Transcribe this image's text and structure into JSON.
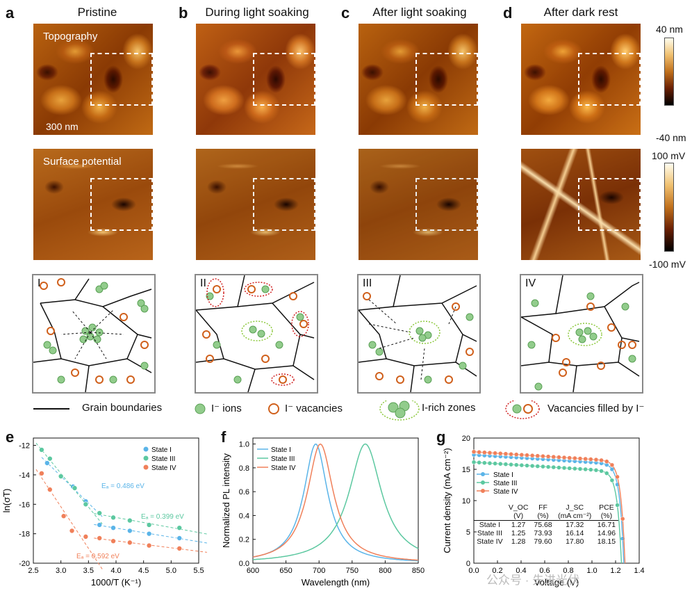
{
  "panels": {
    "a": {
      "letter": "a",
      "title": "Pristine"
    },
    "b": {
      "letter": "b",
      "title": "During light soaking"
    },
    "c": {
      "letter": "c",
      "title": "After light soaking"
    },
    "d": {
      "letter": "d",
      "title": "After dark rest"
    }
  },
  "afm": {
    "topography_label": "Topography",
    "surface_potential_label": "Surface potential",
    "scale_bar": "300 nm",
    "topo_colorbar": {
      "max": "40 nm",
      "min": "-40 nm"
    },
    "sp_colorbar": {
      "max": "100 mV",
      "min": "-100 mV"
    }
  },
  "schematics": {
    "I": "I",
    "II": "II",
    "III": "III",
    "IV": "IV"
  },
  "legend": {
    "grain_boundaries": "Grain boundaries",
    "ions": "I⁻ ions",
    "vacancies": "I⁻ vacancies",
    "rich_zones": "I-rich zones",
    "filled": "Vacancies filled by I⁻"
  },
  "panel_e": {
    "letter": "e"
  },
  "panel_f": {
    "letter": "f"
  },
  "panel_g": {
    "letter": "g"
  },
  "chart_data": [
    {
      "type": "scatter",
      "xlabel": "1000/T (K⁻¹)",
      "ylabel": "ln(σT)",
      "xlim": [
        2.5,
        5.5
      ],
      "ylim": [
        -20,
        -11.5
      ],
      "xticks": [
        "2.5",
        "3.0",
        "3.5",
        "4.0",
        "4.5",
        "5.0",
        "5.5"
      ],
      "yticks": [
        "-20",
        "-18",
        "-16",
        "-14",
        "-12"
      ],
      "legend_position": "top-right",
      "series": [
        {
          "name": "State I",
          "color": "#5ab4e8",
          "x": [
            2.75,
            3.0,
            3.22,
            3.45,
            3.7,
            3.95,
            4.25,
            4.6,
            5.15
          ],
          "y": [
            -13.2,
            -14.1,
            -14.8,
            -15.8,
            -17.4,
            -17.6,
            -17.8,
            -18.0,
            -18.3
          ]
        },
        {
          "name": "State III",
          "color": "#5cc8a0",
          "x": [
            2.65,
            2.8,
            3.0,
            3.25,
            3.45,
            3.7,
            3.95,
            4.25,
            4.6,
            5.15
          ],
          "y": [
            -12.3,
            -12.9,
            -14.1,
            -14.9,
            -16.0,
            -16.6,
            -16.9,
            -17.1,
            -17.4,
            -17.6
          ]
        },
        {
          "name": "State IV",
          "color": "#f0805a",
          "x": [
            2.65,
            2.8,
            3.05,
            3.2,
            3.45,
            3.7,
            3.95,
            4.25,
            4.6,
            5.15
          ],
          "y": [
            -13.9,
            -15.0,
            -16.8,
            -17.8,
            -18.2,
            -18.3,
            -18.5,
            -18.6,
            -18.8,
            -19.0
          ]
        }
      ],
      "annotations": [
        "Eₐ = 0.486 eV",
        "Eₐ = 0.399 eV",
        "Eₐ = 0.592 eV"
      ]
    },
    {
      "type": "line",
      "xlabel": "Wavelength (nm)",
      "ylabel": "Normalized PL intensity",
      "xlim": [
        600,
        850
      ],
      "ylim": [
        0,
        1.05
      ],
      "xticks": [
        "600",
        "650",
        "700",
        "750",
        "800",
        "850"
      ],
      "yticks": [
        "0.0",
        "0.2",
        "0.4",
        "0.6",
        "0.8",
        "1.0"
      ],
      "legend_position": "top-left",
      "series": [
        {
          "name": "State I",
          "color": "#5ab4e8",
          "peak": 695,
          "width": 22
        },
        {
          "name": "State III",
          "color": "#5cc8a0",
          "peak": 770,
          "width": 30
        },
        {
          "name": "State IV",
          "color": "#f0805a",
          "peak": 702,
          "width": 24
        }
      ]
    },
    {
      "type": "line",
      "xlabel": "Voltage (V)",
      "ylabel": "Current density (mA cm⁻²)",
      "xlim": [
        0.0,
        1.4
      ],
      "ylim": [
        0,
        20
      ],
      "xticks": [
        "0.0",
        "0.2",
        "0.4",
        "0.6",
        "0.8",
        "1.0",
        "1.2",
        "1.4"
      ],
      "yticks": [
        "0",
        "5",
        "10",
        "15",
        "20"
      ],
      "legend_position": "middle-left",
      "series": [
        {
          "name": "State I",
          "color": "#5ab4e8",
          "jsc": 17.32,
          "voc": 1.27
        },
        {
          "name": "State III",
          "color": "#5cc8a0",
          "jsc": 16.14,
          "voc": 1.25
        },
        {
          "name": "State IV",
          "color": "#f0805a",
          "jsc": 17.8,
          "voc": 1.28
        }
      ],
      "table": {
        "headers": [
          "",
          "V_OC\n(V)",
          "FF\n(%)",
          "J_SC\n(mA cm⁻²)",
          "PCE\n(%)"
        ],
        "rows": [
          [
            "State I",
            "1.27",
            "75.68",
            "17.32",
            "16.71"
          ],
          [
            "State III",
            "1.25",
            "73.93",
            "16.14",
            "14.96"
          ],
          [
            "State IV",
            "1.28",
            "79.60",
            "17.80",
            "18.15"
          ]
        ]
      }
    }
  ],
  "watermark": "公众号 · 先进光伏"
}
